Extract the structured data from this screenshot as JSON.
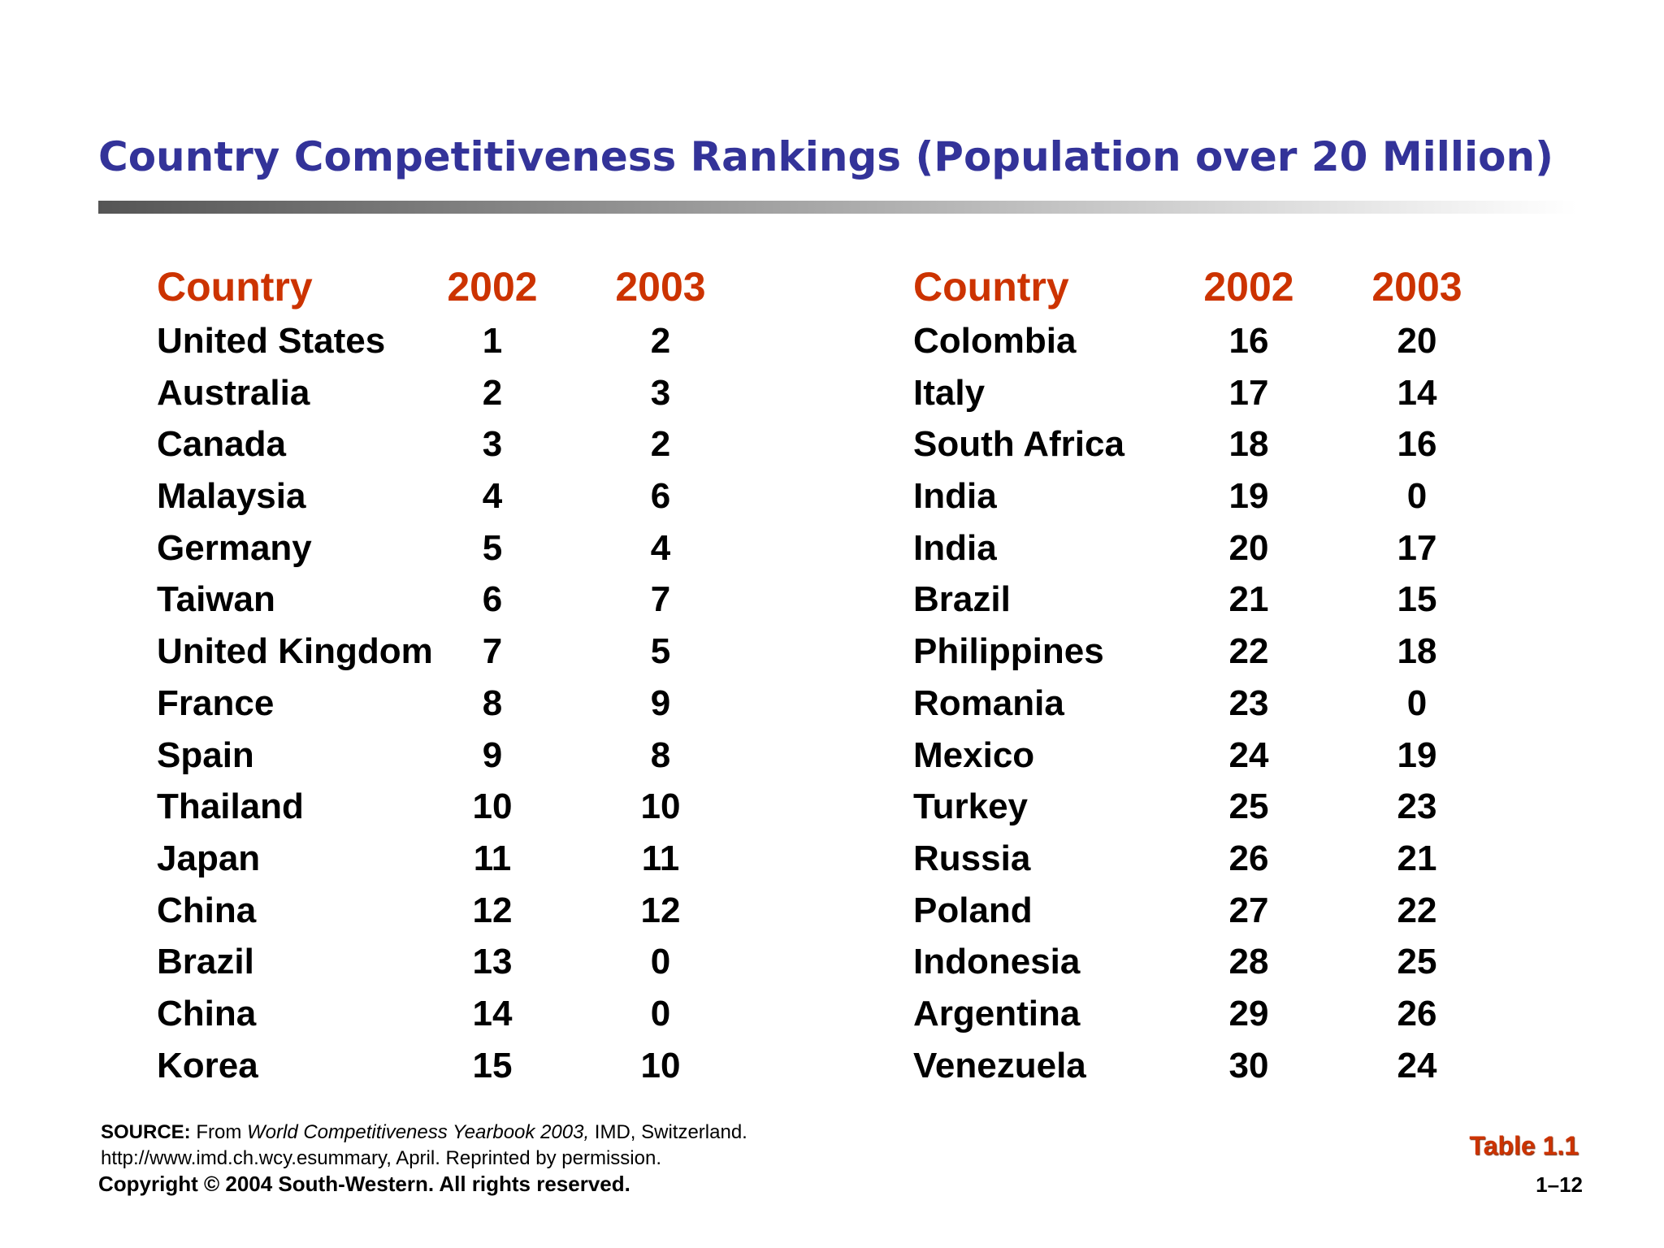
{
  "title": "Country Competitiveness Rankings (Population over 20 Million)",
  "colors": {
    "title": "#333399",
    "header": "#cc3300",
    "table_label": "#cc3300",
    "rule_dark": "#555555",
    "rule_light": "#ffffff"
  },
  "headers": {
    "country": "Country",
    "y2002": "2002",
    "y2003": "2003"
  },
  "left_table": [
    {
      "country": "United States",
      "y2002": "1",
      "y2003": "2"
    },
    {
      "country": "Australia",
      "y2002": "2",
      "y2003": "3"
    },
    {
      "country": "Canada",
      "y2002": "3",
      "y2003": "2"
    },
    {
      "country": "Malaysia",
      "y2002": "4",
      "y2003": "6"
    },
    {
      "country": "Germany",
      "y2002": "5",
      "y2003": "4"
    },
    {
      "country": "Taiwan",
      "y2002": "6",
      "y2003": "7"
    },
    {
      "country": "United Kingdom",
      "y2002": "7",
      "y2003": "5"
    },
    {
      "country": "France",
      "y2002": "8",
      "y2003": "9"
    },
    {
      "country": "Spain",
      "y2002": "9",
      "y2003": "8"
    },
    {
      "country": "Thailand",
      "y2002": "10",
      "y2003": "10"
    },
    {
      "country": "Japan",
      "y2002": "11",
      "y2003": "11"
    },
    {
      "country": "China",
      "y2002": "12",
      "y2003": "12"
    },
    {
      "country": "Brazil",
      "y2002": "13",
      "y2003": "0"
    },
    {
      "country": "China",
      "y2002": "14",
      "y2003": "0"
    },
    {
      "country": "Korea",
      "y2002": "15",
      "y2003": "10"
    }
  ],
  "right_table": [
    {
      "country": "Colombia",
      "y2002": "16",
      "y2003": "20"
    },
    {
      "country": "Italy",
      "y2002": "17",
      "y2003": "14"
    },
    {
      "country": "South Africa",
      "y2002": "18",
      "y2003": "16"
    },
    {
      "country": "India",
      "y2002": "19",
      "y2003": "0"
    },
    {
      "country": "India",
      "y2002": "20",
      "y2003": "17"
    },
    {
      "country": "Brazil",
      "y2002": "21",
      "y2003": "15"
    },
    {
      "country": "Philippines",
      "y2002": "22",
      "y2003": "18"
    },
    {
      "country": "Romania",
      "y2002": "23",
      "y2003": "0"
    },
    {
      "country": "Mexico",
      "y2002": "24",
      "y2003": "19"
    },
    {
      "country": "Turkey",
      "y2002": "25",
      "y2003": "23"
    },
    {
      "country": "Russia",
      "y2002": "26",
      "y2003": "21"
    },
    {
      "country": "Poland",
      "y2002": "27",
      "y2003": "22"
    },
    {
      "country": "Indonesia",
      "y2002": "28",
      "y2003": "25"
    },
    {
      "country": "Argentina",
      "y2002": "29",
      "y2003": "26"
    },
    {
      "country": "Venezuela",
      "y2002": "30",
      "y2003": "24"
    }
  ],
  "source": {
    "label": "SOURCE:",
    "from": " From ",
    "publication": "World Competitiveness Yearbook 2003,",
    "rest": " IMD, Switzerland.",
    "line2": "http://www.imd.ch.wcy.esummary, April. Reprinted by permission."
  },
  "copyright": "Copyright © 2004 South-Western. All rights reserved.",
  "table_label": "Table 1.1",
  "page_number": "1–12"
}
